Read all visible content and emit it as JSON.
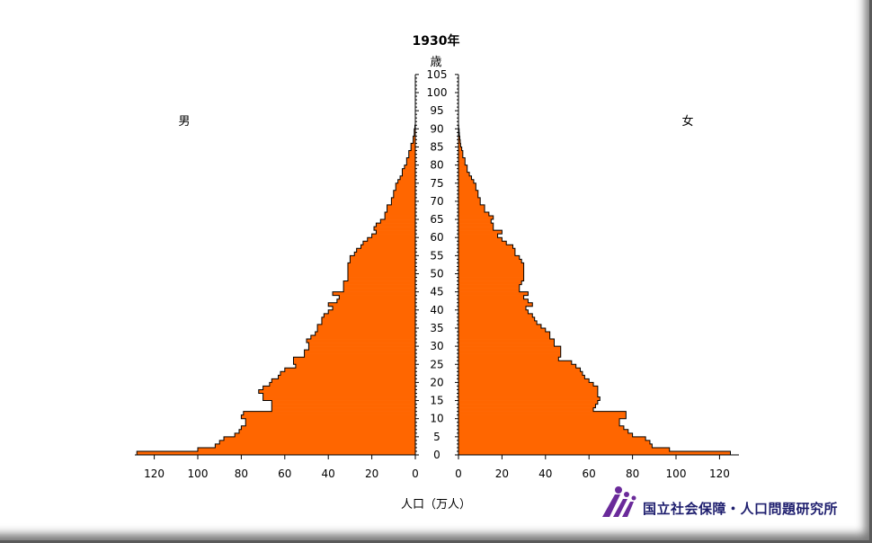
{
  "chart_data": {
    "type": "population-pyramid",
    "title": "1930年",
    "age_unit": "歳",
    "male_label": "男",
    "female_label": "女",
    "xlabel": "人口（万人）",
    "age_ticks": [
      0,
      5,
      10,
      15,
      20,
      25,
      30,
      35,
      40,
      45,
      50,
      55,
      60,
      65,
      70,
      75,
      80,
      85,
      90,
      95,
      100,
      105
    ],
    "value_ticks": [
      0,
      20,
      40,
      60,
      80,
      100,
      120
    ],
    "xlim": [
      0,
      128
    ],
    "male": [
      128,
      100,
      92,
      90,
      88,
      83,
      81,
      80,
      78,
      78,
      80,
      79,
      66,
      66,
      66,
      70,
      70,
      72,
      70,
      67,
      66,
      63,
      62,
      60,
      55,
      56,
      56,
      51,
      51,
      49,
      49,
      50,
      48,
      46,
      45,
      45,
      43,
      43,
      42,
      40,
      38,
      40,
      36,
      35,
      38,
      33,
      33,
      33,
      31,
      31,
      31,
      31,
      31,
      30,
      30,
      28,
      27,
      25,
      24,
      22,
      20,
      18,
      19,
      18,
      16,
      14,
      14,
      13,
      13,
      11,
      11,
      10,
      10,
      9,
      9,
      8,
      7,
      6,
      6,
      5,
      4,
      4,
      3,
      3,
      2,
      2,
      1,
      1,
      0.5,
      0.5,
      0.2
    ],
    "female": [
      125,
      97,
      89,
      88,
      86,
      80,
      78,
      76,
      74,
      74,
      77,
      77,
      62,
      63,
      64,
      65,
      64,
      64,
      64,
      62,
      60,
      58,
      57,
      56,
      54,
      52,
      46,
      47,
      47,
      47,
      44,
      44,
      42,
      42,
      40,
      38,
      36,
      35,
      34,
      32,
      31,
      34,
      32,
      30,
      32,
      28,
      28,
      29,
      30,
      30,
      30,
      30,
      30,
      29,
      28,
      26,
      26,
      25,
      22,
      20,
      18,
      20,
      16,
      16,
      15,
      16,
      14,
      12,
      12,
      10,
      10,
      9,
      9,
      8,
      8,
      7,
      6,
      5,
      4,
      4,
      3,
      3,
      2,
      2,
      1.5,
      1,
      0.8,
      0.6,
      0.4,
      0.3,
      0.1
    ],
    "colors": {
      "bar": "#ff6600",
      "outline": "#000000"
    }
  },
  "footer": {
    "org_name": "国立社会保障・人口問題研究所",
    "logo_icon": "ipss-logo-icon"
  }
}
